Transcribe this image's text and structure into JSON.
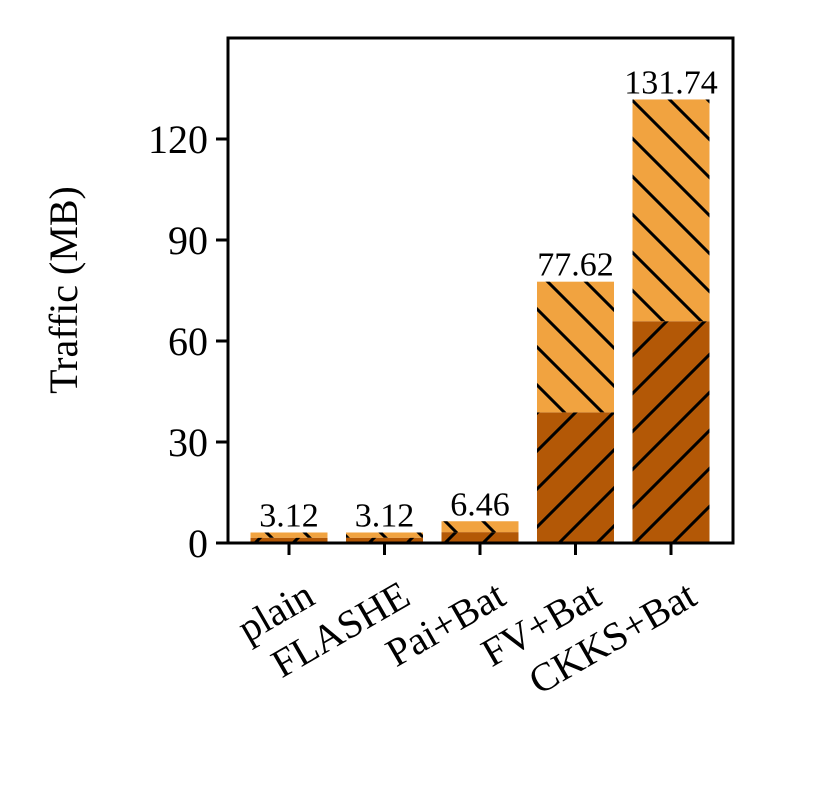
{
  "chart_data": {
    "type": "bar",
    "stacked": true,
    "title": "",
    "xlabel": "",
    "ylabel": "Traffic (MB)",
    "ylim": [
      0,
      150
    ],
    "yticks": [
      0,
      30,
      60,
      90,
      120
    ],
    "ytick_labels": [
      "0",
      "30",
      "60",
      "90",
      "120"
    ],
    "categories": [
      "plain",
      "FLASHE",
      "Pai+Bat",
      "FV+Bat",
      "CKKS+Bat"
    ],
    "series": [
      {
        "values": [
          1.56,
          1.56,
          3.23,
          38.81,
          65.87
        ],
        "color": "#b35806",
        "hatch": "forward-diagonal"
      },
      {
        "values": [
          1.56,
          1.56,
          3.23,
          38.81,
          65.87
        ],
        "color": "#f1a340",
        "hatch": "back-diagonal"
      }
    ],
    "totals": [
      3.12,
      3.12,
      6.46,
      77.62,
      131.74
    ],
    "total_labels": [
      "3.12",
      "3.12",
      "6.46",
      "77.62",
      "131.74"
    ],
    "grid": false,
    "legend": "none"
  }
}
